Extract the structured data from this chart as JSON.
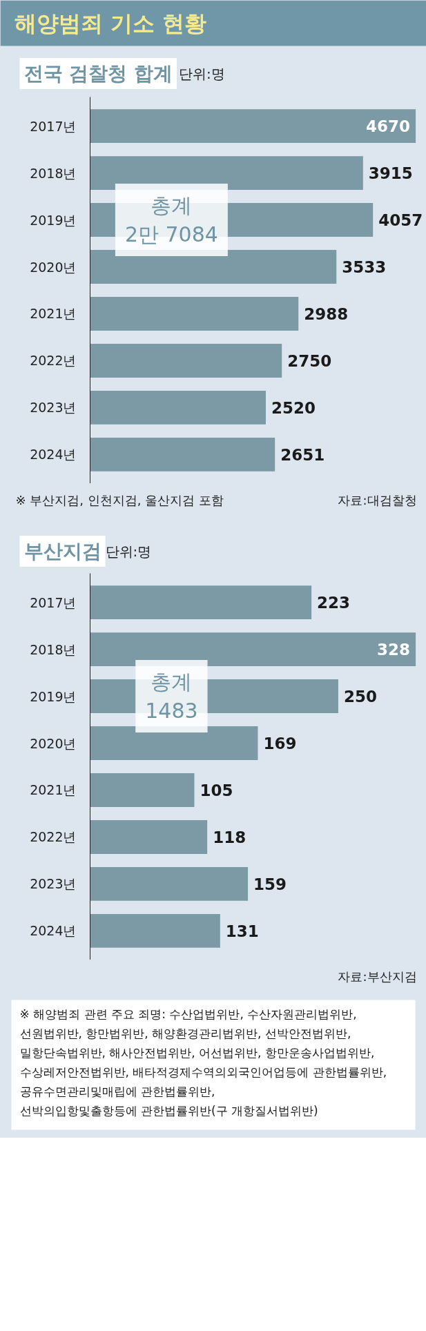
{
  "chart_data": [
    {
      "type": "bar",
      "orientation": "horizontal",
      "title": "해양범죄 기소 현황",
      "subtitle": "전국 검찰청 합계",
      "categories": [
        "2017년",
        "2018년",
        "2019년",
        "2020년",
        "2021년",
        "2022년",
        "2023년",
        "2024년"
      ],
      "values": [
        4670,
        3915,
        4057,
        3533,
        2988,
        2750,
        2520,
        2651
      ],
      "color": "#7b9aa5",
      "data_labels": true,
      "annotations": [
        "단위:명",
        "총계\n2만 7084",
        "※ 부산지검, 인천지검, 울산지검 포함",
        "자료:대검찰청"
      ]
    },
    {
      "type": "bar",
      "orientation": "horizontal",
      "title": "부산지검",
      "categories": [
        "2017년",
        "2018년",
        "2019년",
        "2020년",
        "2021년",
        "2022년",
        "2023년",
        "2024년"
      ],
      "values": [
        223,
        328,
        250,
        169,
        105,
        118,
        159,
        131
      ],
      "color": "#7b9aa5",
      "data_labels": true,
      "annotations": [
        "단위:명",
        "총계\n1483",
        "자료:부산지검",
        "※ 해양범죄 관련 주요 죄명: 수산업법위반, 수산자원관리법위반, 선원법위반, 항만법위반, 해양환경관리법위반, 선박안전법위반, 밀항단속법위반, 해사안전법위반, 어선법위반, 항만운송사업법위반, 수상레저안전법위반, 배타적경제수역의외국인어업등에 관한법률위반, 공유수면관리및매립에 관한법률위반, 선박의입항및출항등에 관한법률위반(구 개항질서법위반)"
      ]
    }
  ]
}
